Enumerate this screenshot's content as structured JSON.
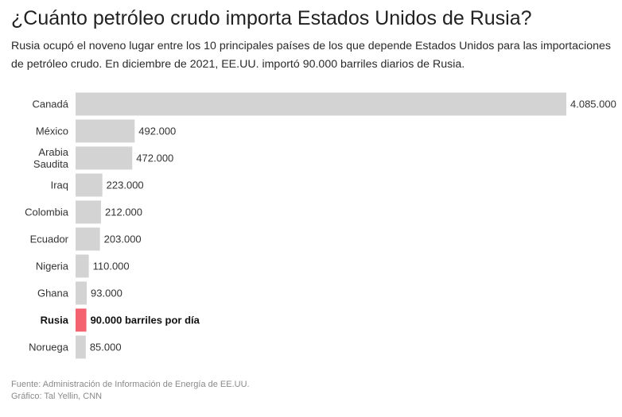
{
  "title": "¿Cuánto petróleo crudo importa Estados Unidos de Rusia?",
  "subtitle": "Rusia ocupó el noveno lugar entre los 10 principales países de los que depende Estados Unidos para las importaciones de petróleo crudo. En diciembre de 2021, EE.UU. importó 90.000 barriles diarios de Rusia.",
  "footer": {
    "source": "Fuente: Administración de Información de Energía de EE.UU.",
    "credit": "Gráfico: Tal Yellin, CNN"
  },
  "colors": {
    "bar": "#d3d3d3",
    "highlight": "#f4626f"
  },
  "chart_data": {
    "type": "bar",
    "orientation": "horizontal",
    "categories": [
      "Canadá",
      "México",
      "Arabia Saudita",
      "Iraq",
      "Colombia",
      "Ecuador",
      "Nigeria",
      "Ghana",
      "Rusia",
      "Noruega"
    ],
    "category_lines": [
      [
        "Canadá"
      ],
      [
        "México"
      ],
      [
        "Arabia",
        "Saudita"
      ],
      [
        "Iraq"
      ],
      [
        "Colombia"
      ],
      [
        "Ecuador"
      ],
      [
        "Nigeria"
      ],
      [
        "Ghana"
      ],
      [
        "Rusia"
      ],
      [
        "Noruega"
      ]
    ],
    "values": [
      4085000,
      492000,
      472000,
      223000,
      212000,
      203000,
      110000,
      93000,
      90000,
      85000
    ],
    "value_labels": [
      "4.085.000",
      "492.000",
      "472.000",
      "223.000",
      "212.000",
      "203.000",
      "110.000",
      "93.000",
      "90.000 barriles por día",
      "85.000"
    ],
    "highlight": "Rusia",
    "xlim": [
      0,
      4085000
    ],
    "grid": false,
    "legend": "none"
  }
}
